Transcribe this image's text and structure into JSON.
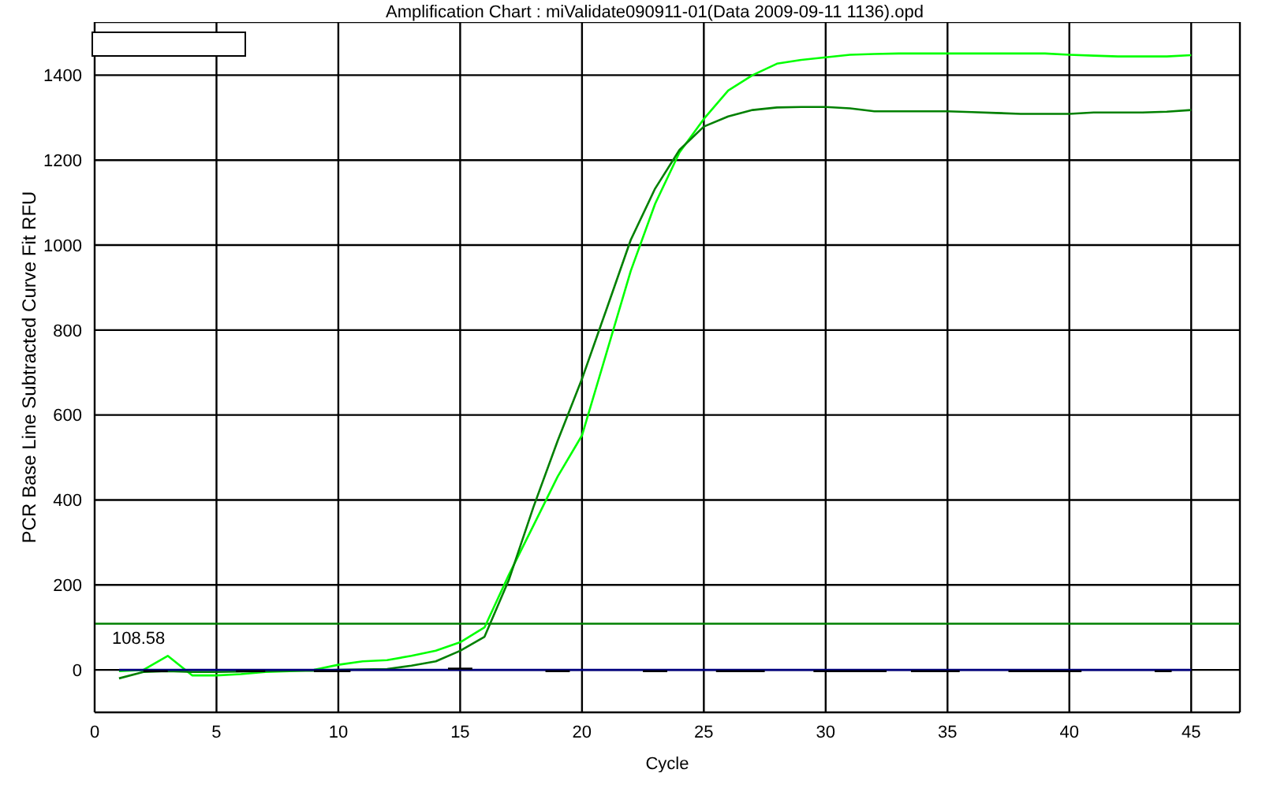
{
  "chart_data": {
    "type": "line",
    "title": "Amplification Chart : miValidate090911-01(Data 2009-09-11 1136).opd",
    "xlabel": "Cycle",
    "ylabel": "PCR Base Line Subtracted Curve Fit RFU",
    "x": [
      1,
      2,
      3,
      4,
      5,
      6,
      7,
      8,
      9,
      10,
      11,
      12,
      13,
      14,
      15,
      16,
      17,
      18,
      19,
      20,
      21,
      22,
      23,
      24,
      25,
      26,
      27,
      28,
      29,
      30,
      31,
      32,
      33,
      34,
      35,
      36,
      37,
      38,
      39,
      40,
      41,
      42,
      43,
      44,
      45
    ],
    "series": [
      {
        "color": "#00ff00",
        "values": [
          -3,
          0,
          33,
          -13,
          -13,
          -10,
          -5,
          -3,
          0,
          12,
          20,
          23,
          33,
          45,
          65,
          100,
          224,
          339,
          455,
          552,
          745,
          939,
          1097,
          1218,
          1297,
          1364,
          1400,
          1427,
          1436,
          1442,
          1448,
          1450,
          1451,
          1451,
          1451,
          1451,
          1451,
          1451,
          1451,
          1448,
          1446,
          1444,
          1444,
          1444,
          1447
        ]
      },
      {
        "color": "#008000",
        "values": [
          -20,
          -5,
          -3,
          -5,
          -5,
          -4,
          -3,
          -2,
          -2,
          0,
          1,
          2,
          10,
          20,
          45,
          78,
          212,
          382,
          539,
          685,
          848,
          1012,
          1133,
          1224,
          1279,
          1303,
          1318,
          1324,
          1325,
          1325,
          1322,
          1315,
          1315,
          1315,
          1315,
          1313,
          1311,
          1309,
          1309,
          1309,
          1312,
          1312,
          1312,
          1314,
          1318
        ]
      },
      {
        "color": "#000080",
        "x": [
          1,
          45
        ],
        "values": [
          0,
          0
        ]
      },
      {
        "color": "#000000",
        "x": [
          2,
          3,
          3.5,
          5.8,
          7,
          7.5,
          9,
          10.5,
          11,
          14.5,
          15.5,
          16,
          18.5,
          19.5,
          20,
          22.5,
          23.5,
          24,
          25.5,
          27.5,
          28,
          29.5,
          32.5,
          33,
          33.5,
          35.5,
          36,
          37.5,
          40.5,
          41,
          43.5,
          44.2
        ],
        "values": [
          -3,
          -3,
          null,
          -3,
          -3,
          null,
          -3,
          -3,
          null,
          3,
          3,
          null,
          -3,
          -3,
          null,
          -3,
          -3,
          null,
          -3,
          -3,
          null,
          -3,
          -3,
          null,
          -3,
          -3,
          null,
          -3,
          -3,
          null,
          -3,
          -3
        ]
      }
    ],
    "xlim": [
      0,
      47
    ],
    "xticks": [
      0,
      5,
      10,
      15,
      20,
      25,
      30,
      35,
      40,
      45
    ],
    "ylim": [
      -100,
      1525
    ],
    "yticks": [
      0,
      200,
      400,
      600,
      800,
      1000,
      1200,
      1400
    ],
    "grid": true,
    "ref_lines": [
      {
        "axis": "y",
        "value": 108.58,
        "label": "108.58",
        "color": "#008000"
      }
    ]
  }
}
